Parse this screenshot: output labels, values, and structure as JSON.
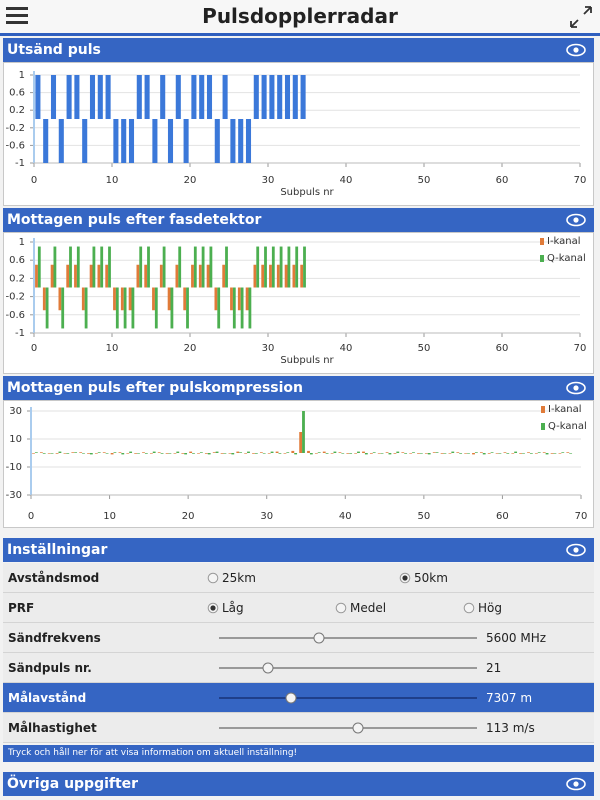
{
  "header": {
    "title": "Pulsdopplerradar"
  },
  "chart_data": [
    {
      "type": "bar",
      "title": "Utsänd puls",
      "xlabel": "Subpuls nr",
      "x": [
        0,
        1,
        2,
        3,
        4,
        5,
        6,
        7,
        8,
        9,
        10,
        11,
        12,
        13,
        14,
        15,
        16,
        17,
        18,
        19,
        20,
        21,
        22,
        23,
        24,
        25,
        26,
        27,
        28,
        29,
        30,
        31,
        32,
        33,
        34
      ],
      "values": [
        1,
        -1,
        1,
        -1,
        1,
        1,
        -1,
        1,
        1,
        1,
        -1,
        -1,
        -1,
        1,
        1,
        -1,
        1,
        -1,
        1,
        -1,
        1,
        1,
        1,
        -1,
        1,
        -1,
        -1,
        -1,
        1,
        1,
        1,
        1,
        1,
        1,
        1
      ],
      "color": "#3b78d9",
      "xlim": [
        0,
        70
      ],
      "xticks": [
        0,
        10,
        20,
        30,
        40,
        50,
        60,
        70
      ],
      "ylim": [
        -1,
        1
      ],
      "yticks": [
        -1,
        -0.6,
        -0.2,
        0.2,
        0.6,
        1
      ],
      "grid": true
    },
    {
      "type": "bar",
      "title": "Mottagen puls efter fasdetektor",
      "xlabel": "Subpuls nr",
      "x": [
        0,
        1,
        2,
        3,
        4,
        5,
        6,
        7,
        8,
        9,
        10,
        11,
        12,
        13,
        14,
        15,
        16,
        17,
        18,
        19,
        20,
        21,
        22,
        23,
        24,
        25,
        26,
        27,
        28,
        29,
        30,
        31,
        32,
        33,
        34
      ],
      "series": [
        {
          "name": "I-kanal",
          "color": "#e07b39",
          "values": [
            0.5,
            -0.5,
            0.5,
            -0.5,
            0.5,
            0.5,
            -0.5,
            0.5,
            0.5,
            0.5,
            -0.5,
            -0.5,
            -0.5,
            0.5,
            0.5,
            -0.5,
            0.5,
            -0.5,
            0.5,
            -0.5,
            0.5,
            0.5,
            0.5,
            -0.5,
            0.5,
            -0.5,
            -0.5,
            -0.5,
            0.5,
            0.5,
            0.5,
            0.5,
            0.5,
            0.5,
            0.5
          ]
        },
        {
          "name": "Q-kanal",
          "color": "#4caf50",
          "values": [
            0.9,
            -0.9,
            0.9,
            -0.9,
            0.9,
            0.9,
            -0.9,
            0.9,
            0.9,
            0.9,
            -0.9,
            -0.9,
            -0.9,
            0.9,
            0.9,
            -0.9,
            0.9,
            -0.9,
            0.9,
            -0.9,
            0.9,
            0.9,
            0.9,
            -0.9,
            0.9,
            -0.9,
            -0.9,
            -0.9,
            0.9,
            0.9,
            0.9,
            0.9,
            0.9,
            0.9,
            0.9
          ]
        }
      ],
      "xlim": [
        0,
        70
      ],
      "xticks": [
        0,
        10,
        20,
        30,
        40,
        50,
        60,
        70
      ],
      "ylim": [
        -1,
        1
      ],
      "yticks": [
        -1,
        -0.6,
        -0.2,
        0.2,
        0.6,
        1
      ],
      "grid": true,
      "legend": "top-right"
    },
    {
      "type": "bar",
      "title": "Mottagen puls efter pulskompression",
      "x": [
        0,
        1,
        2,
        3,
        4,
        5,
        6,
        7,
        8,
        9,
        10,
        11,
        12,
        13,
        14,
        15,
        16,
        17,
        18,
        19,
        20,
        21,
        22,
        23,
        24,
        25,
        26,
        27,
        28,
        29,
        30,
        31,
        32,
        33,
        34,
        35,
        36,
        37,
        38,
        39,
        40,
        41,
        42,
        43,
        44,
        45,
        46,
        47,
        48,
        49,
        50,
        51,
        52,
        53,
        54,
        55,
        56,
        57,
        58,
        59,
        60,
        61,
        62,
        63,
        64,
        65,
        66,
        67,
        68
      ],
      "series": [
        {
          "name": "I-kanal",
          "color": "#e07b39",
          "values": [
            0,
            0.5,
            0,
            -0.5,
            0,
            0.5,
            0.5,
            -0.5,
            0,
            0.5,
            -1,
            0.5,
            0,
            -0.5,
            0.5,
            0,
            0.5,
            -0.5,
            0,
            -0.5,
            1,
            0,
            -0.5,
            0.5,
            -0.5,
            0,
            1,
            0,
            -0.5,
            0.5,
            0,
            1,
            0,
            1.5,
            15,
            1.5,
            0,
            1,
            0,
            0.5,
            -0.5,
            0,
            1,
            -0.5,
            0,
            0.5,
            -0.5,
            0.5,
            0,
            -0.5,
            0,
            0.5,
            -0.5,
            0,
            0.5,
            0,
            -1,
            0.5,
            -0.5,
            0,
            0.5,
            0,
            -0.5,
            0.5,
            0,
            0.5,
            -0.5,
            0,
            0.5
          ]
        },
        {
          "name": "Q-kanal",
          "color": "#4caf50",
          "values": [
            0.5,
            -0.5,
            0,
            1,
            -0.5,
            0.5,
            0,
            -1,
            0.5,
            0,
            0.5,
            -1,
            1,
            0,
            -0.5,
            1,
            -0.5,
            0,
            1,
            -1,
            -0.5,
            0.5,
            -1,
            1,
            0,
            -1,
            0.5,
            1,
            -0.5,
            0,
            1,
            -0.5,
            0.5,
            -1,
            30,
            -1,
            0.5,
            -0.5,
            1,
            0,
            -0.5,
            1,
            -1,
            0.5,
            0,
            -1,
            1,
            -0.5,
            0.5,
            0,
            -1,
            0.5,
            0,
            1,
            -0.5,
            0,
            0.5,
            -1,
            0.5,
            0,
            -0.5,
            1,
            0,
            -0.5,
            0.5,
            -1,
            0,
            0.5,
            0
          ]
        }
      ],
      "xlim": [
        0,
        70
      ],
      "xticks": [
        0,
        10,
        20,
        30,
        40,
        50,
        60,
        70
      ],
      "ylim": [
        -30,
        30
      ],
      "yticks": [
        -30,
        -10,
        10,
        30
      ],
      "grid": true,
      "legend": "top-right"
    }
  ],
  "settings": {
    "title": "Inställningar",
    "rows": [
      {
        "label": "Avståndsmod",
        "options": [
          "25km",
          "50km"
        ],
        "selected": 1
      },
      {
        "label": "PRF",
        "options": [
          "Låg",
          "Medel",
          "Hög"
        ],
        "selected": 0
      },
      {
        "label": "Sändfrekvens",
        "value": "5600 MHz"
      },
      {
        "label": "Sändpuls nr.",
        "value": "21"
      },
      {
        "label": "Målavstånd",
        "value": "7307 m",
        "highlighted": true
      },
      {
        "label": "Målhastighet",
        "value": "113 m/s"
      }
    ],
    "info": "Tryck och håll ner för att visa information om aktuell inställning!"
  },
  "footer": {
    "title": "Övriga uppgifter"
  }
}
